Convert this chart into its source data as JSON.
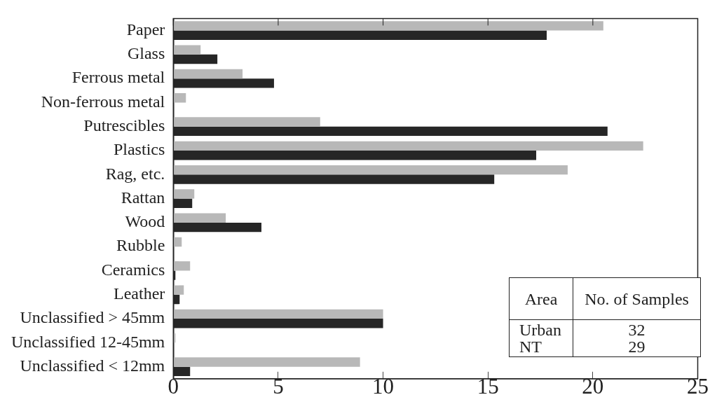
{
  "chart_data": {
    "type": "bar",
    "orientation": "horizontal",
    "categories": [
      "Paper",
      "Glass",
      "Ferrous metal",
      "Non-ferrous metal",
      "Putrescibles",
      "Plastics",
      "Rag, etc.",
      "Rattan",
      "Wood",
      "Rubble",
      "Ceramics",
      "Leather",
      "Unclassified > 45mm",
      "Unclassified 12-45mm",
      "Unclassified < 12mm"
    ],
    "series": [
      {
        "color": "#b8b8b8",
        "values": [
          20.5,
          1.3,
          3.3,
          0.6,
          7.0,
          22.4,
          18.8,
          1.0,
          2.5,
          0.4,
          0.8,
          0.5,
          10.0,
          0.1,
          8.9
        ]
      },
      {
        "color": "#262626",
        "values": [
          17.8,
          2.1,
          4.8,
          0,
          20.7,
          17.3,
          15.3,
          0.9,
          4.2,
          0,
          0.1,
          0.3,
          10.0,
          0,
          0.8
        ]
      }
    ],
    "xlim": [
      0,
      25
    ],
    "xticks": [
      0,
      5,
      10,
      15,
      20,
      25
    ],
    "grid": false,
    "legend": false,
    "annotations": [
      "Area",
      "No. of Samples",
      "Urban",
      "32",
      "NT",
      "29"
    ]
  }
}
